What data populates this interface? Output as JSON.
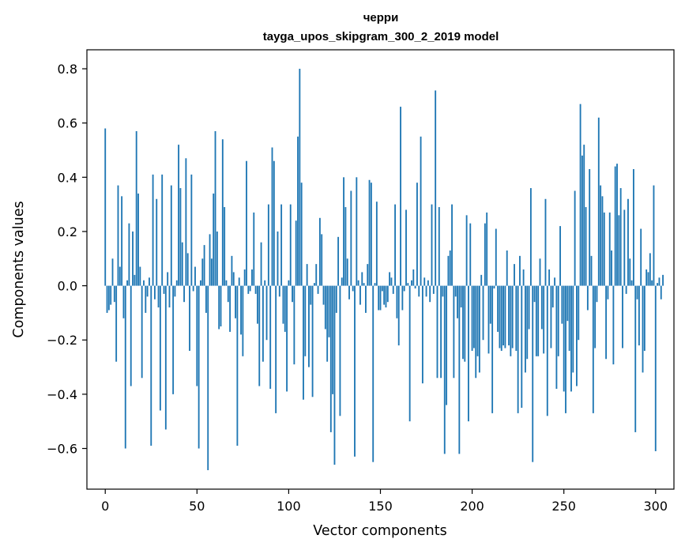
{
  "chart_data": {
    "type": "bar",
    "title": "черри",
    "subtitle": "tayga_upos_skipgram_300_2_2019 model",
    "xlabel": "Vector components",
    "ylabel": "Components values",
    "xlim": [
      -10,
      310
    ],
    "ylim": [
      -0.75,
      0.87
    ],
    "xticks": [
      0,
      50,
      100,
      150,
      200,
      250,
      300
    ],
    "xtick_labels": [
      "0",
      "50",
      "100",
      "150",
      "200",
      "250",
      "300"
    ],
    "yticks": [
      0.8,
      0.6,
      0.4,
      0.2,
      0.0,
      -0.2,
      -0.4,
      -0.6
    ],
    "ytick_labels": [
      "0.8",
      "0.6",
      "0.4",
      "0.2",
      "0.0",
      "−0.2",
      "−0.4",
      "−0.6"
    ],
    "bar_color": "#1f77b4",
    "series": [
      {
        "name": "components",
        "values": [
          0.58,
          -0.1,
          -0.09,
          -0.07,
          0.1,
          -0.06,
          -0.28,
          0.37,
          0.07,
          0.33,
          -0.12,
          -0.6,
          0.02,
          0.23,
          -0.37,
          0.2,
          0.04,
          0.57,
          0.34,
          0.07,
          -0.34,
          0.02,
          -0.1,
          -0.04,
          0.03,
          -0.59,
          0.41,
          -0.05,
          0.32,
          -0.08,
          -0.46,
          0.41,
          -0.03,
          -0.53,
          0.05,
          -0.08,
          0.37,
          -0.4,
          -0.04,
          0.02,
          0.52,
          0.36,
          0.16,
          -0.06,
          0.47,
          0.12,
          -0.24,
          0.41,
          -0.02,
          0.07,
          -0.37,
          -0.6,
          0.02,
          0.1,
          0.15,
          -0.1,
          -0.68,
          0.19,
          0.1,
          0.34,
          0.57,
          0.2,
          -0.16,
          -0.15,
          0.54,
          0.29,
          0.02,
          -0.06,
          -0.17,
          0.11,
          0.05,
          -0.12,
          -0.59,
          0.03,
          -0.18,
          -0.26,
          0.06,
          0.46,
          -0.03,
          -0.02,
          0.06,
          0.27,
          -0.03,
          -0.14,
          -0.37,
          0.16,
          -0.28,
          0.02,
          -0.2,
          0.3,
          -0.38,
          0.51,
          0.46,
          -0.47,
          0.2,
          -0.04,
          0.3,
          -0.14,
          -0.17,
          -0.39,
          0.02,
          0.3,
          -0.06,
          -0.29,
          0.24,
          0.55,
          0.8,
          0.38,
          -0.42,
          -0.26,
          0.08,
          -0.3,
          -0.07,
          -0.41,
          0.01,
          0.08,
          -0.03,
          0.25,
          0.19,
          -0.07,
          -0.16,
          -0.28,
          -0.19,
          -0.54,
          -0.4,
          -0.66,
          -0.1,
          0.18,
          -0.48,
          0.03,
          0.4,
          0.29,
          0.1,
          -0.05,
          0.35,
          -0.02,
          -0.63,
          0.4,
          0.02,
          -0.07,
          0.05,
          0.01,
          -0.1,
          0.08,
          0.39,
          0.38,
          -0.65,
          0.01,
          0.31,
          -0.09,
          -0.09,
          -0.02,
          -0.07,
          -0.08,
          -0.06,
          0.05,
          0.03,
          -0.03,
          0.3,
          -0.12,
          -0.22,
          0.66,
          -0.09,
          -0.02,
          0.28,
          0.01,
          -0.5,
          0.02,
          0.06,
          -0.01,
          0.38,
          -0.04,
          0.55,
          -0.36,
          0.03,
          -0.04,
          0.02,
          -0.06,
          0.3,
          -0.03,
          0.72,
          -0.34,
          0.29,
          -0.34,
          -0.04,
          -0.62,
          -0.44,
          0.11,
          0.13,
          0.3,
          -0.34,
          -0.04,
          -0.12,
          -0.62,
          -0.08,
          -0.27,
          -0.28,
          0.26,
          -0.5,
          0.23,
          -0.24,
          -0.23,
          -0.34,
          -0.26,
          -0.32,
          0.04,
          -0.2,
          0.23,
          0.27,
          -0.25,
          -0.14,
          -0.47,
          -0.01,
          0.21,
          -0.17,
          -0.23,
          -0.24,
          -0.22,
          -0.23,
          0.13,
          -0.22,
          -0.26,
          -0.23,
          0.08,
          -0.24,
          -0.47,
          0.11,
          -0.45,
          0.06,
          -0.32,
          -0.27,
          -0.16,
          0.36,
          -0.65,
          -0.06,
          -0.26,
          -0.26,
          0.1,
          -0.16,
          -0.25,
          0.32,
          -0.48,
          0.06,
          -0.23,
          -0.08,
          0.03,
          -0.38,
          -0.26,
          0.22,
          -0.14,
          -0.39,
          -0.47,
          -0.13,
          -0.24,
          -0.39,
          -0.32,
          0.35,
          -0.37,
          -0.2,
          0.67,
          0.48,
          0.52,
          0.29,
          -0.09,
          0.43,
          0.11,
          -0.47,
          -0.23,
          -0.06,
          0.62,
          0.37,
          0.33,
          0.27,
          -0.27,
          -0.05,
          0.27,
          0.13,
          -0.29,
          0.44,
          0.45,
          0.26,
          0.36,
          -0.23,
          0.28,
          -0.03,
          0.32,
          0.1,
          0.02,
          0.43,
          -0.54,
          -0.05,
          -0.22,
          0.21,
          -0.32,
          -0.24,
          0.06,
          0.05,
          0.12,
          0.02,
          0.37,
          -0.61,
          0.01,
          0.03,
          -0.05,
          0.04
        ]
      }
    ]
  }
}
